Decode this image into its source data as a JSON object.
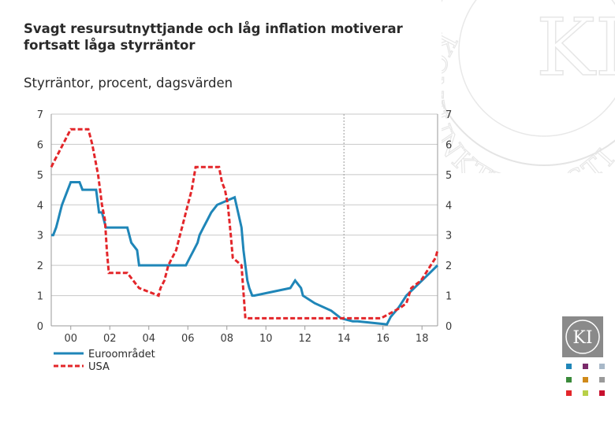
{
  "header": {
    "title_line1": "Svagt resursutnyttjande och låg inflation motiverar",
    "title_line2": "fortsatt låga styrräntor",
    "subtitle": "Styrräntor, procent, dagsvärden"
  },
  "watermark": {
    "text": "KONJUNKTURINSTITUTET"
  },
  "colors": {
    "euro": "#1f86b8",
    "usa": "#e3262a",
    "grid": "#c8c8c8",
    "axis": "#9a9a9a"
  },
  "chart_data": {
    "type": "line",
    "x_ticks": [
      "00",
      "02",
      "04",
      "06",
      "08",
      "10",
      "12",
      "14",
      "16",
      "18"
    ],
    "x_tick_years": [
      2000,
      2002,
      2004,
      2006,
      2008,
      2010,
      2012,
      2014,
      2016,
      2018
    ],
    "y_ticks": [
      0,
      1,
      2,
      3,
      4,
      5,
      6,
      7
    ],
    "xlim": [
      1999.0,
      2018.8
    ],
    "ylim": [
      0,
      7
    ],
    "forecast_marker_year": 2014.0,
    "grid": true,
    "legend_position": "bottom-left",
    "series": [
      {
        "name": "Euroområdet",
        "style": "solid",
        "x": [
          1999.0,
          1999.1,
          1999.25,
          1999.35,
          1999.45,
          1999.55,
          1999.7,
          1999.85,
          2000.0,
          2000.15,
          2000.3,
          2000.45,
          2000.6,
          2000.8,
          2001.3,
          2001.45,
          2001.6,
          2001.8,
          2001.9,
          2002.9,
          2003.1,
          2003.4,
          2003.5,
          2005.9,
          2006.1,
          2006.3,
          2006.5,
          2006.6,
          2006.8,
          2007.0,
          2007.2,
          2007.5,
          2008.4,
          2008.75,
          2008.85,
          2008.95,
          2009.05,
          2009.15,
          2009.3,
          2009.4,
          2011.25,
          2011.5,
          2011.8,
          2011.9,
          2012.5,
          2013.35,
          2013.85,
          2014.45,
          2014.7,
          2016.2,
          2016.4,
          2016.8,
          2017.2,
          2017.6,
          2018.0,
          2018.4,
          2018.8
        ],
        "y": [
          3.0,
          3.0,
          3.25,
          3.5,
          3.75,
          4.0,
          4.25,
          4.5,
          4.75,
          4.75,
          4.75,
          4.75,
          4.5,
          4.5,
          4.5,
          3.75,
          3.75,
          3.25,
          3.25,
          3.25,
          2.75,
          2.5,
          2.0,
          2.0,
          2.25,
          2.5,
          2.75,
          3.0,
          3.25,
          3.5,
          3.75,
          4.0,
          4.25,
          3.25,
          2.5,
          2.0,
          1.5,
          1.25,
          1.0,
          1.0,
          1.25,
          1.5,
          1.25,
          1.0,
          0.75,
          0.5,
          0.25,
          0.15,
          0.15,
          0.05,
          0.3,
          0.6,
          1.0,
          1.25,
          1.5,
          1.75,
          2.0
        ]
      },
      {
        "name": "USA",
        "style": "dashed",
        "x": [
          1999.0,
          1999.2,
          1999.4,
          1999.6,
          2000.0,
          2000.4,
          2000.9,
          2001.1,
          2001.25,
          2001.4,
          2001.5,
          2001.6,
          2001.75,
          2001.85,
          2001.95,
          2002.9,
          2003.5,
          2004.5,
          2004.6,
          2004.8,
          2005.0,
          2005.2,
          2005.4,
          2005.6,
          2005.8,
          2006.0,
          2006.2,
          2006.4,
          2007.6,
          2007.75,
          2007.9,
          2008.05,
          2008.2,
          2008.3,
          2008.75,
          2008.95,
          2015.9,
          2016.9,
          2017.2,
          2017.45,
          2017.95,
          2018.2,
          2018.45,
          2018.7,
          2018.8
        ],
        "y": [
          5.25,
          5.5,
          5.75,
          6.0,
          6.5,
          6.5,
          6.5,
          6.0,
          5.5,
          5.0,
          4.5,
          4.0,
          3.5,
          2.5,
          1.75,
          1.75,
          1.25,
          1.0,
          1.25,
          1.5,
          2.0,
          2.25,
          2.5,
          3.0,
          3.5,
          4.0,
          4.5,
          5.25,
          5.25,
          4.75,
          4.5,
          4.0,
          3.0,
          2.25,
          2.0,
          0.25,
          0.25,
          0.6,
          0.75,
          1.25,
          1.5,
          1.75,
          2.0,
          2.25,
          2.5
        ]
      }
    ]
  },
  "legend": {
    "euro_label": "Euroområdet",
    "usa_label": "USA"
  },
  "logo": {
    "text": "KI"
  },
  "swatches": [
    "#1f86b8",
    "#7a2a6a",
    "#a8b8c8",
    "#3a8a3a",
    "#d08a1a",
    "#9a9a9a",
    "#e3262a",
    "#b8d048",
    "#c8102e"
  ]
}
